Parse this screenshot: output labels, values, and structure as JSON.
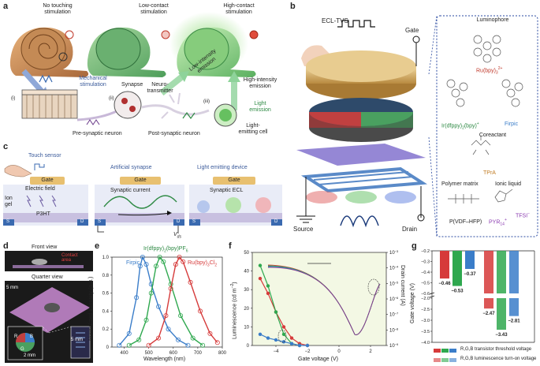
{
  "panels": {
    "a": "a",
    "b": "b",
    "c": "c",
    "d": "d",
    "e": "e",
    "f": "f",
    "g": "g"
  },
  "a": {
    "snail_labels": [
      "No touching\nstimulation",
      "Low-contact\nstimulation",
      "High-contact\nstimulation"
    ],
    "mech_stim": "Mechanical\nstimulation",
    "synapse": "Synapse",
    "neurotransmitter": "Neuro-\ntransmitter",
    "low_emission": "Low-intensity\nemission",
    "high_emission": "High-intensity\nemission",
    "light_emission": "Light\nemission",
    "light_cell": "Light-\nemitting cell",
    "pre_neuron": "Pre-synaptic neuron",
    "post_neuron": "Post-synaptic neuron",
    "roman": [
      "(i)",
      "(ii)",
      "(iii)"
    ]
  },
  "c": {
    "touch_sensor": "Touch sensor",
    "artificial_synapse": "Artificial synapse",
    "led": "Light emitting device",
    "gate": "Gate",
    "electric_field": "Electric field",
    "ion_gel": "Ion\ngel",
    "p3ht": "P3HT",
    "s": "S",
    "d": "D",
    "synaptic_current": "Synaptic current",
    "synaptic_ecl": "Synaptic ECL",
    "vds": "V",
    "vds_sub": "ds"
  },
  "b": {
    "ecl_tvs": "ECL-TVS",
    "gate": "Gate",
    "source": "Source",
    "drain": "Drain",
    "luminophore": "Luminophore",
    "ru": "Ru(bpy)",
    "ru_sup": "2+",
    "ru_sub": "3",
    "ir": "Ir(dfppy)",
    "ir_sub": "2",
    "ir_rest": "(bpy)",
    "ir_sup": "+",
    "firpic": "Firpic",
    "coreactant": "Coreactant",
    "tpra": "TPrA",
    "polymer": "Polymer matrix",
    "pvdf": "P(VDF–HFP)",
    "ionic": "Ionic liquid",
    "pyr": "PYR",
    "pyr_sub": "14",
    "pyr_sup": "+",
    "tfsi": "TFSI",
    "tfsi_sup": "−"
  },
  "d": {
    "front": "Front view",
    "quarter": "Quarter view",
    "contact": "Contact\narea",
    "scale1": "5 mm",
    "scale2": "2 mm",
    "scale3": "5 mm",
    "rgb": [
      "R",
      "G",
      "B"
    ]
  },
  "e": {
    "ylabel": "Normalized intensity (a.u.)",
    "xlabel": "Wavelength (nm)",
    "legend": {
      "firpic": "Firpic",
      "ir": "Ir(dfppy)",
      "ir_sub1": "2",
      "ir_mid": "(bpy)PF",
      "ir_sub2": "6",
      "ru": "Ru(bpy)",
      "ru_sub1": "3",
      "ru_mid": "Cl",
      "ru_sub2": "2"
    },
    "xticks": [
      "400",
      "500",
      "600",
      "700",
      "800"
    ],
    "yticks": [
      "0",
      "0.2",
      "0.4",
      "0.6",
      "0.8",
      "1.0"
    ]
  },
  "f": {
    "ylabel": "Luminescence (cd m",
    "ylabel_sup": "−2",
    "ylabel_end": ")",
    "y2label": "Drain current (A)",
    "xlabel": "Gate voltage (V)",
    "xticks": [
      "−4",
      "−2",
      "0",
      "2"
    ],
    "yticks": [
      "0",
      "10",
      "20",
      "30",
      "40",
      "50"
    ],
    "y2ticks": [
      "10",
      "10",
      "10",
      "10",
      "10",
      "10",
      "10"
    ],
    "y2exp": [
      "−3",
      "−4",
      "−5",
      "−6",
      "−7",
      "−8",
      "−9"
    ]
  },
  "g": {
    "ylabel": "Gate voltage (V)",
    "yticks": [
      "−0.2",
      "−0.3",
      "−0.4",
      "−0.5",
      "−0.6",
      "−2.0",
      "−2.5",
      "−3.0",
      "−3.5",
      "−4.0"
    ],
    "legend1": "R,G,B transistor threshold voltage",
    "legend2": "R,G,B luminescence turn-on voltage"
  },
  "chart_data": [
    {
      "type": "line",
      "panel": "e",
      "xlabel": "Wavelength (nm)",
      "ylabel": "Normalized intensity (a.u.)",
      "xlim": [
        350,
        800
      ],
      "ylim": [
        0,
        1.0
      ],
      "series": [
        {
          "name": "Firpic",
          "color": "#3a7dc9",
          "peak": 475,
          "x": [
            380,
            420,
            450,
            465,
            475,
            490,
            510,
            540,
            580,
            620,
            660
          ],
          "y": [
            0.02,
            0.15,
            0.55,
            0.9,
            1.0,
            0.92,
            0.7,
            0.45,
            0.2,
            0.08,
            0.02
          ]
        },
        {
          "name": "Ir(dfppy)2(bpy)PF6",
          "color": "#2fa84f",
          "peak": 540,
          "x": [
            420,
            460,
            490,
            510,
            530,
            545,
            560,
            590,
            630,
            680,
            720
          ],
          "y": [
            0.02,
            0.08,
            0.3,
            0.6,
            0.9,
            1.0,
            0.95,
            0.7,
            0.35,
            0.1,
            0.02
          ]
        },
        {
          "name": "Ru(bpy)3Cl2",
          "color": "#d63a3a",
          "peak": 620,
          "x": [
            500,
            540,
            570,
            590,
            610,
            625,
            640,
            670,
            710,
            750,
            780
          ],
          "y": [
            0.02,
            0.1,
            0.35,
            0.65,
            0.92,
            1.0,
            0.95,
            0.72,
            0.4,
            0.15,
            0.05
          ]
        }
      ]
    },
    {
      "type": "line",
      "panel": "f",
      "xlabel": "Gate voltage (V)",
      "ylabel": "Luminescence (cd m−2)",
      "y2label": "Drain current (A)",
      "xlim": [
        -5.5,
        3
      ],
      "ylim": [
        0,
        50
      ],
      "series": [
        {
          "name": "R",
          "color": "#d63a3a",
          "x": [
            -5.0,
            -4.5,
            -4.0,
            -3.5,
            -3.0,
            -2.5,
            -2.0
          ],
          "y": [
            36,
            28,
            18,
            10,
            4,
            1,
            0
          ]
        },
        {
          "name": "G",
          "color": "#2fa84f",
          "x": [
            -5.0,
            -4.5,
            -4.0,
            -3.5,
            -3.0,
            -2.5
          ],
          "y": [
            43,
            32,
            18,
            6,
            1,
            0
          ]
        },
        {
          "name": "B",
          "color": "#3a7dc9",
          "x": [
            -5.0,
            -4.5,
            -4.0,
            -3.5,
            -3.0,
            -2.5,
            -2.0
          ],
          "y": [
            6,
            4,
            3,
            2,
            1,
            0,
            0
          ]
        }
      ]
    },
    {
      "type": "bar",
      "panel": "g",
      "ylabel": "Gate voltage (V)",
      "categories": [
        "R",
        "G",
        "B"
      ],
      "series": [
        {
          "name": "R,G,B transistor threshold voltage",
          "values": [
            -0.46,
            -0.53,
            -0.37
          ],
          "labels": [
            "−0.46",
            "−0.53",
            "−0.37"
          ]
        },
        {
          "name": "R,G,B luminescence turn-on voltage",
          "values": [
            -2.47,
            -3.43,
            -2.81
          ],
          "labels": [
            "−2.47",
            "−3.43",
            "−2.81"
          ]
        }
      ],
      "colors": [
        "#d63a3a",
        "#2fa84f",
        "#3a7dc9"
      ]
    }
  ]
}
